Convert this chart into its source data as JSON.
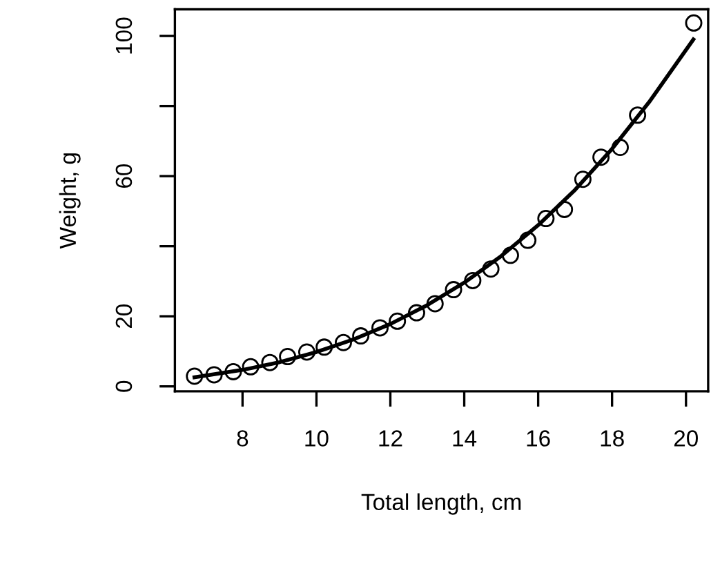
{
  "chart_data": {
    "type": "scatter",
    "xlabel": "Total length, cm",
    "ylabel": "Weight, g",
    "xlim": [
      6.17,
      20.6
    ],
    "ylim": [
      -1.4,
      107.6
    ],
    "xticks": [
      8,
      10,
      12,
      14,
      16,
      18,
      20
    ],
    "yticks": [
      0,
      20,
      {
        "value": 40,
        "label": null
      },
      60,
      {
        "value": 80,
        "label": null
      },
      100
    ],
    "grid": false,
    "legend": false,
    "series": [
      {
        "marker": "circle",
        "color": "#000000",
        "x": [
          6.7,
          7.23,
          7.75,
          8.22,
          8.74,
          9.22,
          9.74,
          10.21,
          10.73,
          11.2,
          11.72,
          12.19,
          12.71,
          13.21,
          13.71,
          14.23,
          14.72,
          15.25,
          15.72,
          16.21,
          16.71,
          17.21,
          17.7,
          18.22,
          18.69,
          20.21
        ],
        "values": [
          2.9,
          3.3,
          4.2,
          5.6,
          6.8,
          8.5,
          9.8,
          11.2,
          12.5,
          14.4,
          16.7,
          18.6,
          21.0,
          23.6,
          27.6,
          30.2,
          33.5,
          37.4,
          41.7,
          47.9,
          50.5,
          59.1,
          65.4,
          68.2,
          77.4,
          103.7
        ]
      },
      {
        "type": "line",
        "marker": "none",
        "line_style": "solid",
        "color": "#000000",
        "x": [
          6.7,
          8,
          9,
          10,
          11,
          12,
          13,
          14,
          15,
          16,
          17,
          18,
          19,
          20.2
        ],
        "values": [
          2.6,
          4.7,
          6.9,
          9.8,
          13.4,
          17.8,
          23.2,
          29.6,
          37.2,
          46.0,
          56.1,
          67.8,
          81.1,
          99.0
        ]
      }
    ]
  }
}
